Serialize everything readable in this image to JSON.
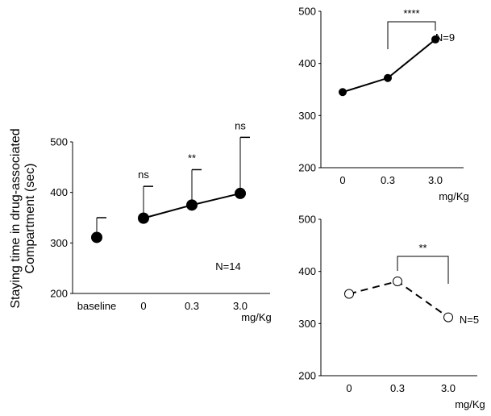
{
  "chart_data": [
    {
      "type": "line",
      "ylabel_lines": [
        "Staying time in drug-associated",
        "Compartment (sec)"
      ],
      "xlabel": "mg/Kg",
      "categories": [
        "baseline",
        "0",
        "0.3",
        "3.0"
      ],
      "yticks": [
        200,
        300,
        400,
        500
      ],
      "ylim": [
        200,
        500
      ],
      "series": [
        {
          "values": [
            311,
            349,
            375,
            398
          ],
          "errors": [
            39,
            63,
            70,
            111
          ],
          "marker": "filled",
          "line": "solid",
          "connect_from": 1
        }
      ],
      "annotations": [
        "",
        "ns",
        "**",
        "ns"
      ],
      "note": "N=14"
    },
    {
      "type": "line",
      "xlabel": "mg/Kg",
      "categories": [
        "0",
        "0.3",
        "3.0"
      ],
      "yticks": [
        200,
        300,
        400,
        500
      ],
      "ylim": [
        200,
        500
      ],
      "series": [
        {
          "values": [
            345,
            372,
            446
          ],
          "marker": "filled",
          "line": "solid"
        }
      ],
      "significance": {
        "from": 1,
        "to": 2,
        "label": "****"
      },
      "note": "N=9"
    },
    {
      "type": "line",
      "xlabel": "mg/Kg",
      "categories": [
        "0",
        "0.3",
        "3.0"
      ],
      "yticks": [
        200,
        300,
        400,
        500
      ],
      "ylim": [
        200,
        500
      ],
      "series": [
        {
          "values": [
            357,
            381,
            312
          ],
          "marker": "open",
          "line": "dashed"
        }
      ],
      "significance": {
        "from": 1,
        "to": 2,
        "label": "**"
      },
      "note": "N=5"
    }
  ]
}
